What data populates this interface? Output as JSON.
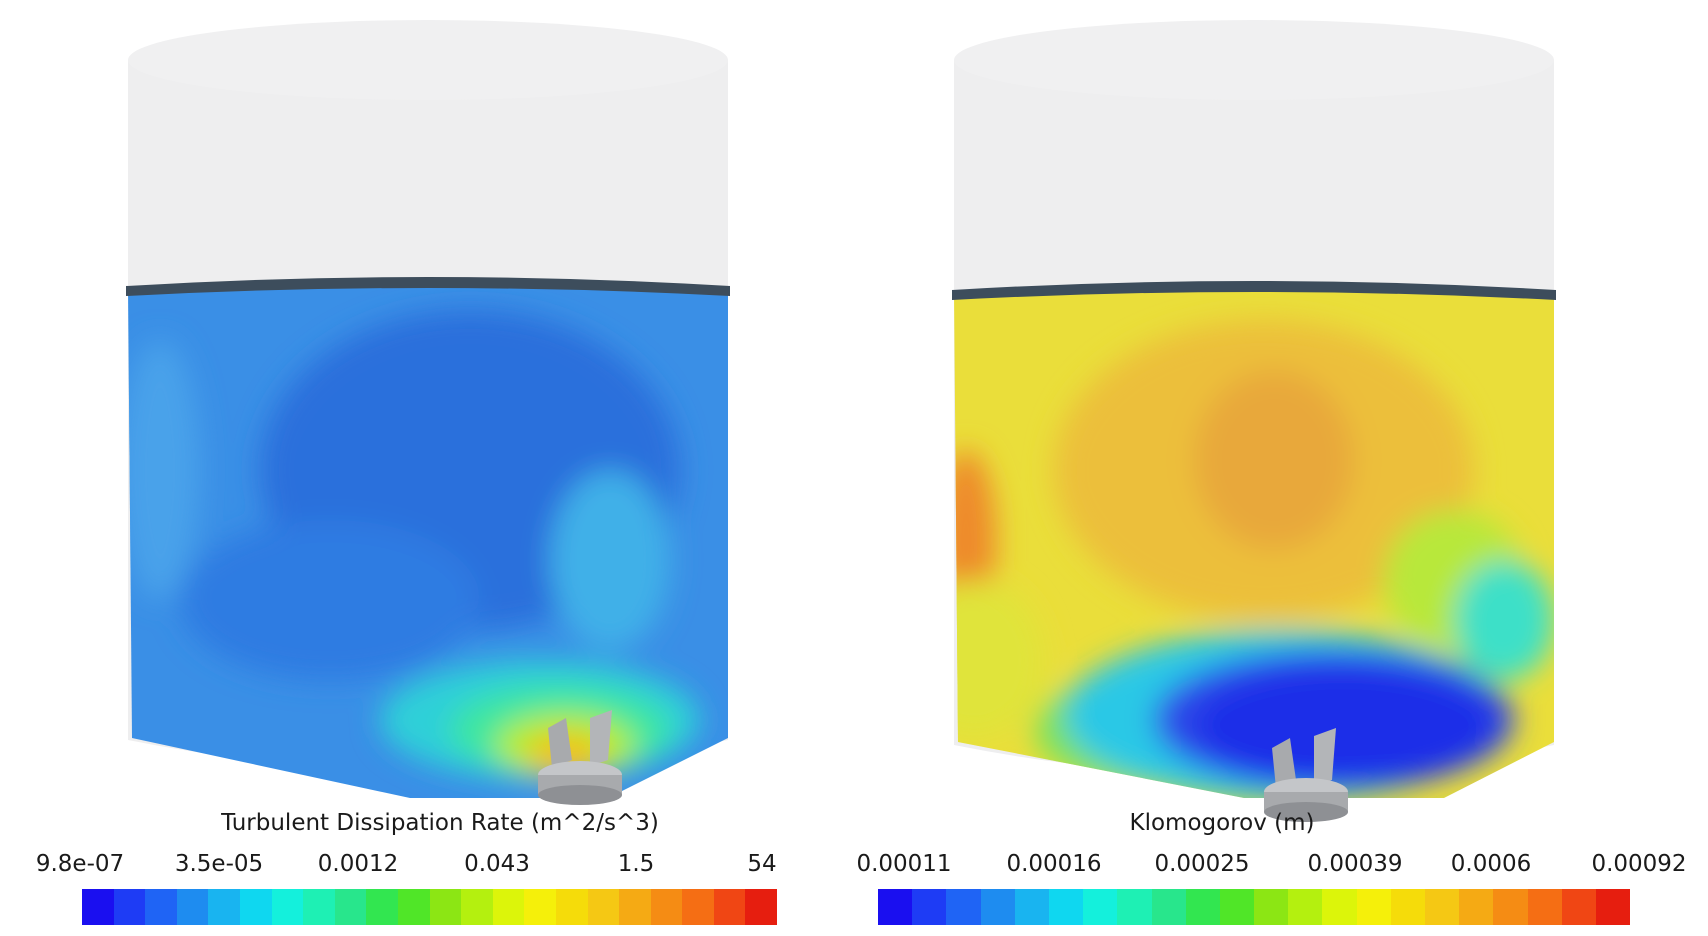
{
  "panels": [
    {
      "legend": {
        "title": "Turbulent Dissipation Rate (m^2/s^3)",
        "ticks": [
          "9.8e-07",
          "3.5e-05",
          "0.0012",
          "0.043",
          "1.5",
          "54"
        ]
      }
    },
    {
      "legend": {
        "title": "Klomogorov (m)",
        "ticks": [
          "0.00011",
          "0.00016",
          "0.00025",
          "0.00039",
          "0.0006",
          "0.00092"
        ]
      }
    }
  ],
  "colormap": [
    "#1a0ff0",
    "#1e3cf5",
    "#1f64f5",
    "#1e8cf0",
    "#19b4f0",
    "#0fd7f0",
    "#14f0dc",
    "#1ef0b4",
    "#28e68c",
    "#32e650",
    "#50e628",
    "#8ce614",
    "#b4f00f",
    "#dcf50a",
    "#f5f00a",
    "#f5dc0a",
    "#f5c814",
    "#f5aa14",
    "#f58c14",
    "#f56e14",
    "#f04614",
    "#e61e0f"
  ],
  "colors": {
    "tank_shell": "#eeeeef",
    "liquid_surface": "#3d4d5c",
    "impeller": "#a8aaad"
  }
}
